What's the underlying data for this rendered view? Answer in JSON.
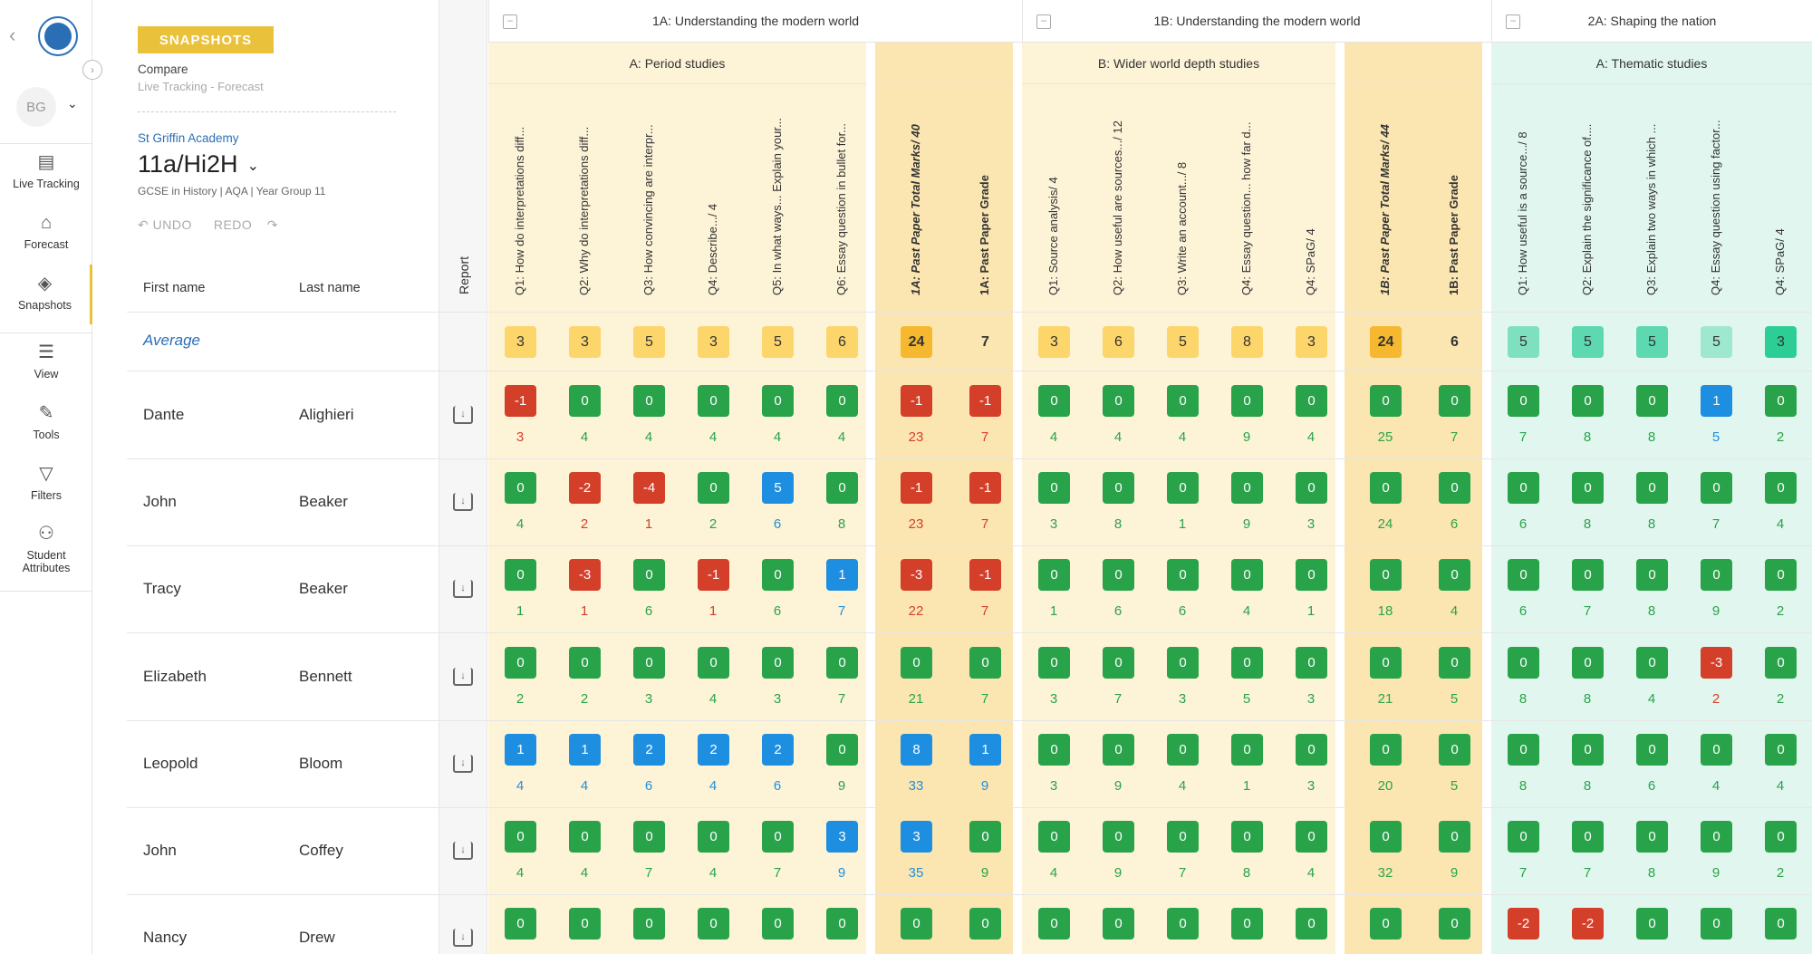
{
  "nav": {
    "user_initials": "BG",
    "items": [
      {
        "label": "Live Tracking",
        "icon": "table-icon"
      },
      {
        "label": "Forecast",
        "icon": "forecast-icon"
      },
      {
        "label": "Snapshots",
        "icon": "layers-icon"
      },
      {
        "label": "View",
        "icon": "sliders-icon"
      },
      {
        "label": "Tools",
        "icon": "wrench-icon"
      },
      {
        "label": "Filters",
        "icon": "filter-icon"
      },
      {
        "label": "Student Attributes",
        "icon": "attributes-icon"
      }
    ]
  },
  "header": {
    "badge": "SNAPSHOTS",
    "compare": "Compare",
    "subtitle": "Live Tracking - Forecast",
    "school": "St Griffin Academy",
    "class_name": "11a/Hi2H",
    "course": "GCSE in History | AQA | Year Group 11",
    "undo": "UNDO",
    "redo": "REDO",
    "first_name": "First name",
    "last_name": "Last name",
    "report": "Report",
    "average": "Average"
  },
  "colors": {
    "green": "#29a34a",
    "red": "#d43f2a",
    "blue": "#1e8fe0",
    "yellow_bg": "#fdf3d7",
    "yellow_bold_bg": "#fbe6b2",
    "teal_bg": "#e0f6ef",
    "avg_yellow": "#fcd56b",
    "avg_gold": "#f5b82e"
  },
  "groups": [
    {
      "title": "1A: Understanding the modern world",
      "subtitle": "A: Period studies"
    },
    {
      "title": "1B: Understanding the modern world",
      "subtitle": "B: Wider world depth studies"
    },
    {
      "title": "2A: Shaping the nation",
      "subtitle": "A: Thematic studies"
    }
  ],
  "columns": [
    "Q1: How do interpretations diff...",
    "Q2: Why do interpretations diff...",
    "Q3: How convincing are interpr...",
    "Q4: Describe.../ 4",
    "Q5: In what ways... Explain your...",
    "Q6: Essay question in bullet for...",
    "1A: Past Paper Total Marks/ 40",
    "1A: Past Paper Grade",
    "Q1: Source analysis/ 4",
    "Q2: How useful are sources.../ 12",
    "Q3: Write an account.../ 8",
    "Q4: Essay question... how far d...",
    "Q4: SPaG/ 4",
    "1B: Past Paper Total Marks/ 44",
    "1B: Past Paper Grade",
    "Q1: How useful is a source.../ 8",
    "Q2: Explain the significance of....",
    "Q3: Explain two ways in which ...",
    "Q4: Essay question using factor...",
    "Q4: SPaG/ 4"
  ],
  "averages": [
    "3",
    "3",
    "5",
    "3",
    "5",
    "6",
    "24",
    "7",
    "3",
    "6",
    "5",
    "8",
    "3",
    "24",
    "6",
    "5",
    "5",
    "5",
    "5",
    "3"
  ],
  "students": [
    {
      "first": "Dante",
      "last": "Alighieri",
      "diff": [
        "-1",
        "0",
        "0",
        "0",
        "0",
        "0",
        "-1",
        "-1",
        "0",
        "0",
        "0",
        "0",
        "0",
        "0",
        "0",
        "0",
        "0",
        "0",
        "1",
        "0"
      ],
      "val": [
        "3",
        "4",
        "4",
        "4",
        "4",
        "4",
        "23",
        "7",
        "4",
        "4",
        "4",
        "9",
        "4",
        "25",
        "7",
        "7",
        "8",
        "8",
        "5",
        "2"
      ]
    },
    {
      "first": "John",
      "last": "Beaker",
      "diff": [
        "0",
        "-2",
        "-4",
        "0",
        "5",
        "0",
        "-1",
        "-1",
        "0",
        "0",
        "0",
        "0",
        "0",
        "0",
        "0",
        "0",
        "0",
        "0",
        "0",
        "0"
      ],
      "val": [
        "4",
        "2",
        "1",
        "2",
        "6",
        "8",
        "23",
        "7",
        "3",
        "8",
        "1",
        "9",
        "3",
        "24",
        "6",
        "6",
        "8",
        "8",
        "7",
        "4"
      ]
    },
    {
      "first": "Tracy",
      "last": "Beaker",
      "diff": [
        "0",
        "-3",
        "0",
        "-1",
        "0",
        "1",
        "-3",
        "-1",
        "0",
        "0",
        "0",
        "0",
        "0",
        "0",
        "0",
        "0",
        "0",
        "0",
        "0",
        "0"
      ],
      "val": [
        "1",
        "1",
        "6",
        "1",
        "6",
        "7",
        "22",
        "7",
        "1",
        "6",
        "6",
        "4",
        "1",
        "18",
        "4",
        "6",
        "7",
        "8",
        "9",
        "2"
      ]
    },
    {
      "first": "Elizabeth",
      "last": "Bennett",
      "diff": [
        "0",
        "0",
        "0",
        "0",
        "0",
        "0",
        "0",
        "0",
        "0",
        "0",
        "0",
        "0",
        "0",
        "0",
        "0",
        "0",
        "0",
        "0",
        "-3",
        "0"
      ],
      "val": [
        "2",
        "2",
        "3",
        "4",
        "3",
        "7",
        "21",
        "7",
        "3",
        "7",
        "3",
        "5",
        "3",
        "21",
        "5",
        "8",
        "8",
        "4",
        "2",
        "2"
      ]
    },
    {
      "first": "Leopold",
      "last": "Bloom",
      "diff": [
        "1",
        "1",
        "2",
        "2",
        "2",
        "0",
        "8",
        "1",
        "0",
        "0",
        "0",
        "0",
        "0",
        "0",
        "0",
        "0",
        "0",
        "0",
        "0",
        "0"
      ],
      "val": [
        "4",
        "4",
        "6",
        "4",
        "6",
        "9",
        "33",
        "9",
        "3",
        "9",
        "4",
        "1",
        "3",
        "20",
        "5",
        "8",
        "8",
        "6",
        "4",
        "4"
      ]
    },
    {
      "first": "John",
      "last": "Coffey",
      "diff": [
        "0",
        "0",
        "0",
        "0",
        "0",
        "3",
        "3",
        "0",
        "0",
        "0",
        "0",
        "0",
        "0",
        "0",
        "0",
        "0",
        "0",
        "0",
        "0",
        "0"
      ],
      "val": [
        "4",
        "4",
        "7",
        "4",
        "7",
        "9",
        "35",
        "9",
        "4",
        "9",
        "7",
        "8",
        "4",
        "32",
        "9",
        "7",
        "7",
        "8",
        "9",
        "2"
      ]
    },
    {
      "first": "Nancy",
      "last": "Drew",
      "diff": [
        "0",
        "0",
        "0",
        "0",
        "0",
        "0",
        "0",
        "0",
        "0",
        "0",
        "0",
        "0",
        "0",
        "0",
        "0",
        "-2",
        "-2",
        "0",
        "0",
        "0"
      ],
      "val": [
        "",
        "",
        "",
        "",
        "",
        "",
        "",
        "",
        "",
        "",
        "",
        "",
        "",
        "",
        "",
        "",
        "",
        "",
        "",
        ""
      ]
    }
  ]
}
